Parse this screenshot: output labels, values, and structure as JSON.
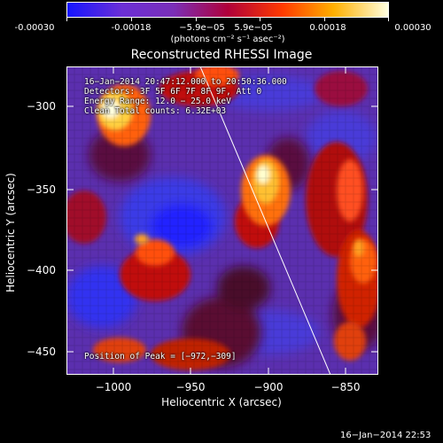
{
  "colorbar": {
    "labels": [
      "-0.00030",
      "-0.00018",
      "−5.9e−05",
      "5.9e−05",
      "0.00018",
      "0.00030"
    ],
    "unit": "(photons cm⁻² s⁻¹ asec⁻²)",
    "colors": [
      "#1515ff",
      "#6b2fd6",
      "#7a2fb8",
      "#b0003a",
      "#ff3a00",
      "#ffb000",
      "#ffffe0"
    ]
  },
  "title": "Reconstructed RHESSI Image",
  "info": {
    "line1": "16−Jan−2014 20:47:12.000 to 20:50:36.000",
    "line2": "Detectors: 3F 5F 6F 7F 8F 9F, Att 0",
    "line3": "Energy Range: 12.0 − 25.0 keV",
    "line4": "Clean    Total counts: 6.32E+03",
    "peak": "Position of Peak = [−972,−309]"
  },
  "axes": {
    "xlabel": "Heliocentric X (arcsec)",
    "ylabel": "Heliocentric Y (arcsec)",
    "xticks": [
      "−1000",
      "−950",
      "−900",
      "−850"
    ],
    "yticks": [
      "−300",
      "−350",
      "−400",
      "−450"
    ]
  },
  "footer": {
    "date": "16−Jan−2014 22:53"
  }
}
